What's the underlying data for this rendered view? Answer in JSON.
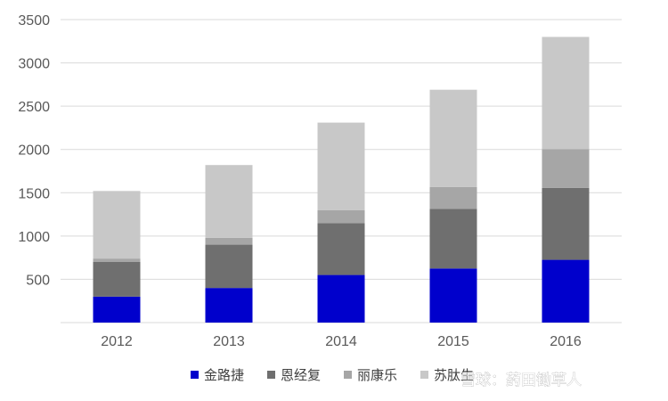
{
  "chart_data": {
    "type": "bar",
    "stacked": true,
    "categories": [
      "2012",
      "2013",
      "2014",
      "2015",
      "2016"
    ],
    "series": [
      {
        "name": "金路捷",
        "color": "#0000cc",
        "values": [
          300,
          400,
          550,
          625,
          725
        ]
      },
      {
        "name": "恩经复",
        "color": "#6f6f6f",
        "values": [
          400,
          500,
          600,
          690,
          830
        ]
      },
      {
        "name": "丽康乐",
        "color": "#a6a6a6",
        "values": [
          40,
          80,
          150,
          250,
          450
        ]
      },
      {
        "name": "苏肽生",
        "color": "#c8c8c8",
        "values": [
          780,
          840,
          1010,
          1125,
          1295
        ]
      }
    ],
    "yticks": [
      500,
      1000,
      1500,
      2000,
      2500,
      3000,
      3500
    ],
    "ylim": [
      0,
      3500
    ],
    "grid": true,
    "legend_position": "bottom"
  },
  "watermark": {
    "text": "雪球：药田锄草人"
  }
}
